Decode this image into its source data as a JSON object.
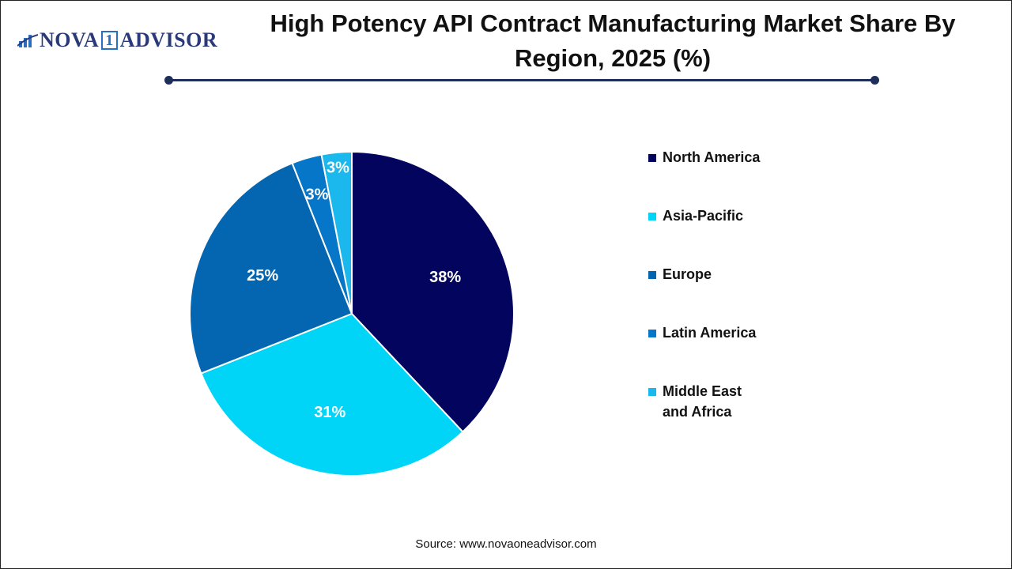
{
  "logo": {
    "text_a": "NOVA",
    "text_one": "1",
    "text_b": "ADVISOR"
  },
  "chart_data": {
    "type": "pie",
    "title": "High Potency API Contract Manufacturing Market Share By Region, 2025 (%)",
    "categories": [
      "North America",
      "Asia-Pacific",
      "Europe",
      "Latin America",
      "Middle East and Africa"
    ],
    "values": [
      38,
      31,
      25,
      3,
      3
    ],
    "labels": [
      "38%",
      "31%",
      "25%",
      "3%",
      "3%"
    ],
    "colors": [
      "#03045e",
      "#00d4f7",
      "#0466b0",
      "#0676c9",
      "#1ab8ec"
    ],
    "legend_position": "right",
    "legend_lines": [
      [
        "North America"
      ],
      [
        "Asia-Pacific"
      ],
      [
        "Europe"
      ],
      [
        "Latin America"
      ],
      [
        "Middle East",
        "and Africa"
      ]
    ]
  },
  "source": "Source: www.novaoneadvisor.com"
}
